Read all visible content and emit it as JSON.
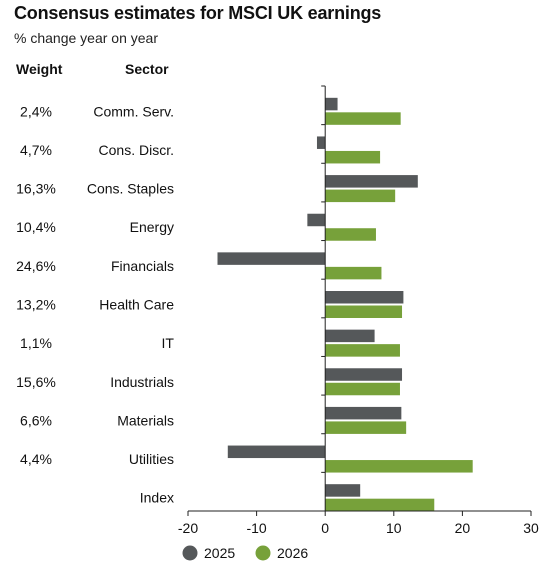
{
  "header": {
    "title": "Consensus estimates for MSCI UK earnings",
    "subtitle": "% change year on year",
    "weight_label": "Weight",
    "sector_label": "Sector"
  },
  "colors": {
    "series_2025": "#55585a",
    "series_2026": "#77a13a",
    "axis": "#222222"
  },
  "chart_data": {
    "type": "bar",
    "orientation": "horizontal",
    "title": "Consensus estimates for MSCI UK earnings",
    "subtitle": "% change year on year",
    "categories": [
      "Comm. Serv.",
      "Cons. Discr.",
      "Cons. Staples",
      "Energy",
      "Financials",
      "Health Care",
      "IT",
      "Industrials",
      "Materials",
      "Utilities",
      "Index"
    ],
    "weights": [
      "2,4%",
      "4,7%",
      "16,3%",
      "10,4%",
      "24,6%",
      "13,2%",
      "1,1%",
      "15,6%",
      "6,6%",
      "4,4%",
      ""
    ],
    "series": [
      {
        "name": "2025",
        "values": [
          1.8,
          -1.2,
          13.5,
          -2.6,
          -15.7,
          11.4,
          7.2,
          11.2,
          11.1,
          -14.2,
          5.1
        ]
      },
      {
        "name": "2026",
        "values": [
          11.0,
          8.0,
          10.2,
          7.4,
          8.2,
          11.2,
          10.9,
          10.9,
          11.8,
          21.5,
          15.9
        ]
      }
    ],
    "xlim": [
      -20,
      30
    ],
    "xticks": [
      -20,
      -10,
      0,
      10,
      20,
      30
    ],
    "legend_position": "bottom",
    "grid": false
  }
}
